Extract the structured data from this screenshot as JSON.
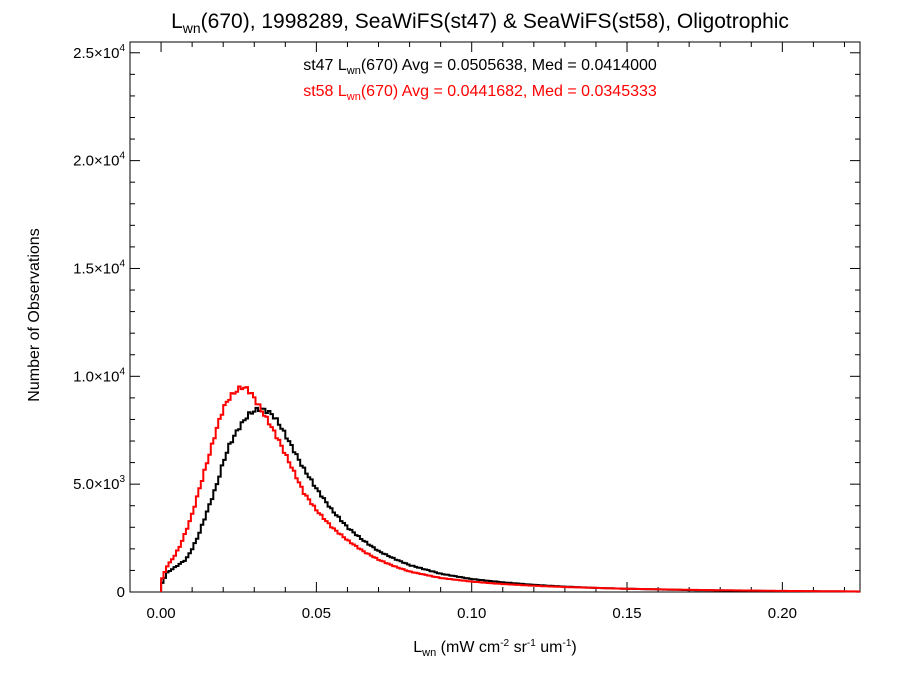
{
  "chart_data": {
    "type": "line",
    "title": {
      "main": "L",
      "sub": "wn",
      "rest": "(670), 1998289, SeaWiFS(st47) & SeaWiFS(st58), Oligotrophic"
    },
    "xlabel": {
      "main": "L",
      "sub": "wn",
      "p1": " (mW cm",
      "s1": "-2",
      "p2": " sr",
      "s2": "-1",
      "p3": " um",
      "s3": "-1",
      "p4": ")"
    },
    "ylabel": "Number of Observations",
    "xlim": [
      -0.01,
      0.225
    ],
    "ylim": [
      0,
      25500
    ],
    "xticks": [
      {
        "v": 0.0,
        "label": "0.00"
      },
      {
        "v": 0.05,
        "label": "0.05"
      },
      {
        "v": 0.1,
        "label": "0.10"
      },
      {
        "v": 0.15,
        "label": "0.15"
      },
      {
        "v": 0.2,
        "label": "0.20"
      }
    ],
    "yticks": [
      {
        "v": 0,
        "label": "0"
      },
      {
        "v": 5000,
        "label": "5.0×10",
        "exp": "3"
      },
      {
        "v": 10000,
        "label": "1.0×10",
        "exp": "4"
      },
      {
        "v": 15000,
        "label": "1.5×10",
        "exp": "4"
      },
      {
        "v": 20000,
        "label": "2.0×10",
        "exp": "4"
      },
      {
        "v": 25000,
        "label": "2.5×10",
        "exp": "4"
      }
    ],
    "annotations": [
      {
        "color": "#000000",
        "pre": "st47 L",
        "sub": "wn",
        "post": "(670) Avg = 0.0505638, Med = 0.0414000"
      },
      {
        "color": "#ff0000",
        "pre": "st58 L",
        "sub": "wn",
        "post": "(670) Avg = 0.0441682, Med = 0.0345333"
      }
    ],
    "series": [
      {
        "color": "#000000",
        "x": [
          -0.005,
          0.0,
          0.002,
          0.005,
          0.008,
          0.01,
          0.012,
          0.015,
          0.018,
          0.02,
          0.022,
          0.025,
          0.028,
          0.03,
          0.032,
          0.034,
          0.036,
          0.038,
          0.04,
          0.043,
          0.046,
          0.05,
          0.055,
          0.06,
          0.065,
          0.07,
          0.075,
          0.08,
          0.09,
          0.1,
          0.11,
          0.12,
          0.13,
          0.14,
          0.15,
          0.17,
          0.2,
          0.225
        ],
        "y": [
          0,
          300,
          900,
          1200,
          1500,
          2000,
          2600,
          3800,
          5000,
          6000,
          6800,
          7600,
          8200,
          8400,
          8500,
          8400,
          8200,
          7800,
          7300,
          6500,
          5700,
          4800,
          3800,
          3000,
          2400,
          1900,
          1550,
          1250,
          850,
          600,
          450,
          330,
          250,
          190,
          150,
          90,
          40,
          20
        ]
      },
      {
        "color": "#ff0000",
        "x": [
          -0.005,
          0.0,
          0.002,
          0.004,
          0.006,
          0.008,
          0.01,
          0.012,
          0.014,
          0.016,
          0.018,
          0.02,
          0.022,
          0.024,
          0.026,
          0.028,
          0.03,
          0.032,
          0.035,
          0.038,
          0.04,
          0.043,
          0.046,
          0.05,
          0.055,
          0.06,
          0.065,
          0.07,
          0.075,
          0.08,
          0.09,
          0.1,
          0.11,
          0.12,
          0.13,
          0.15,
          0.17,
          0.2,
          0.225
        ],
        "y": [
          0,
          500,
          1200,
          1600,
          2100,
          2800,
          3600,
          4600,
          5600,
          6600,
          7600,
          8500,
          9000,
          9300,
          9500,
          9400,
          9000,
          8500,
          7800,
          7000,
          6400,
          5500,
          4600,
          3800,
          3000,
          2400,
          1900,
          1500,
          1200,
          950,
          650,
          480,
          370,
          290,
          230,
          150,
          100,
          50,
          25
        ]
      }
    ]
  }
}
